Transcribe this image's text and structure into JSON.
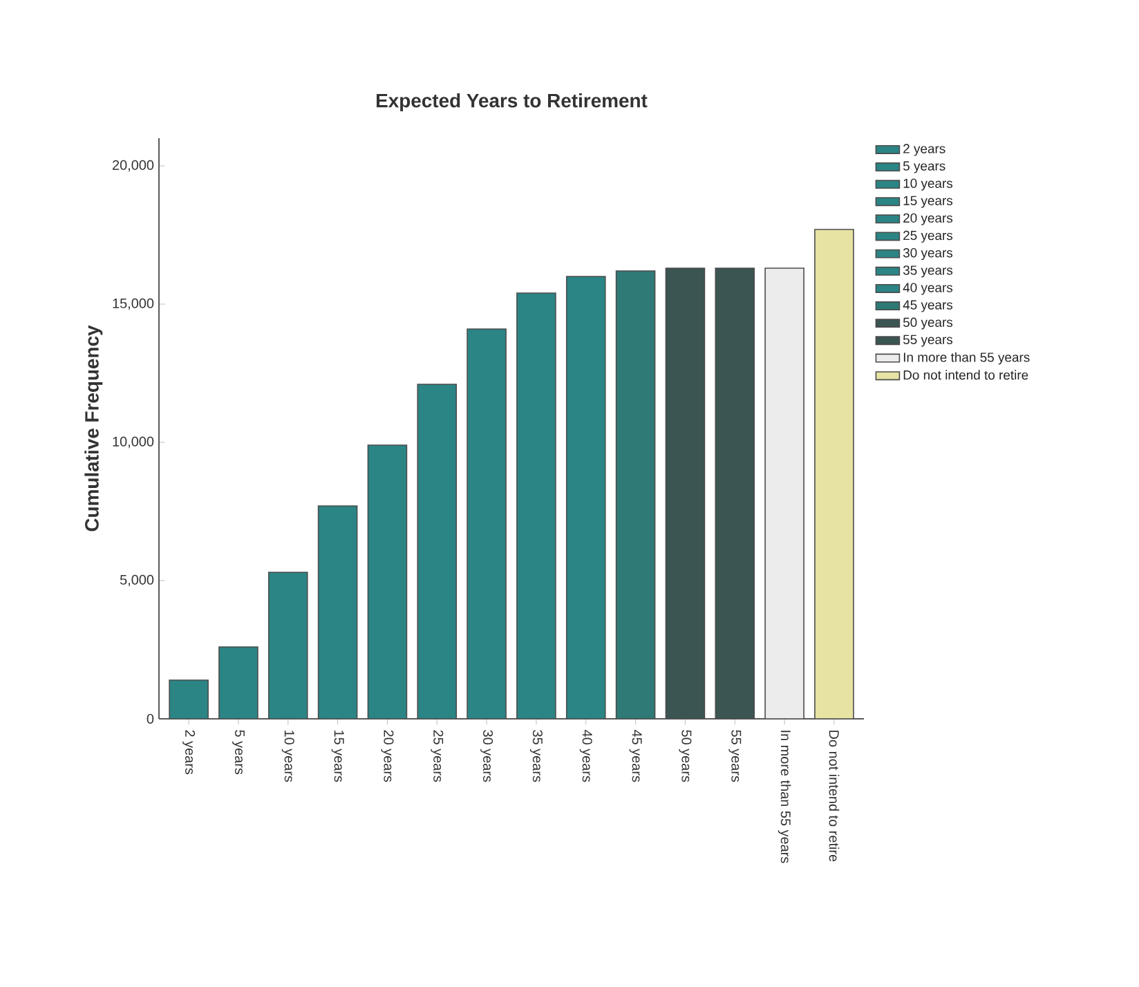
{
  "chart_data": {
    "type": "bar",
    "title": "Expected Years to Retirement",
    "ylabel": "Cumulative Frequency",
    "categories": [
      "2 years",
      "5 years",
      "10 years",
      "15 years",
      "20 years",
      "25 years",
      "30 years",
      "35 years",
      "40 years",
      "45 years",
      "50 years",
      "55 years",
      "In more than 55 years",
      "Do not intend to retire"
    ],
    "series": [
      {
        "name": "2 years",
        "color": "#2b8585",
        "values": [
          1400,
          null,
          null,
          null,
          null,
          null,
          null,
          null,
          null,
          null,
          null,
          null,
          null,
          null
        ]
      },
      {
        "name": "5 years",
        "color": "#2b8585",
        "values": [
          null,
          2600,
          null,
          null,
          null,
          null,
          null,
          null,
          null,
          null,
          null,
          null,
          null,
          null
        ]
      },
      {
        "name": "10 years",
        "color": "#2b8585",
        "values": [
          null,
          null,
          5300,
          null,
          null,
          null,
          null,
          null,
          null,
          null,
          null,
          null,
          null,
          null
        ]
      },
      {
        "name": "15 years",
        "color": "#2b8585",
        "values": [
          null,
          null,
          null,
          7700,
          null,
          null,
          null,
          null,
          null,
          null,
          null,
          null,
          null,
          null
        ]
      },
      {
        "name": "20 years",
        "color": "#2b8585",
        "values": [
          null,
          null,
          null,
          null,
          9900,
          null,
          null,
          null,
          null,
          null,
          null,
          null,
          null,
          null
        ]
      },
      {
        "name": "25 years",
        "color": "#2b8585",
        "values": [
          null,
          null,
          null,
          null,
          null,
          12100,
          null,
          null,
          null,
          null,
          null,
          null,
          null,
          null
        ]
      },
      {
        "name": "30 years",
        "color": "#2b8585",
        "values": [
          null,
          null,
          null,
          null,
          null,
          null,
          14100,
          null,
          null,
          null,
          null,
          null,
          null,
          null
        ]
      },
      {
        "name": "35 years",
        "color": "#2b8585",
        "values": [
          null,
          null,
          null,
          null,
          null,
          null,
          null,
          15400,
          null,
          null,
          null,
          null,
          null,
          null
        ]
      },
      {
        "name": "40 years",
        "color": "#2b8585",
        "values": [
          null,
          null,
          null,
          null,
          null,
          null,
          null,
          null,
          16000,
          null,
          null,
          null,
          null,
          null
        ]
      },
      {
        "name": "45 years",
        "color": "#2f7a76",
        "values": [
          null,
          null,
          null,
          null,
          null,
          null,
          null,
          null,
          null,
          16200,
          null,
          null,
          null,
          null
        ]
      },
      {
        "name": "50 years",
        "color": "#3b5553",
        "values": [
          null,
          null,
          null,
          null,
          null,
          null,
          null,
          null,
          null,
          null,
          16300,
          null,
          null,
          null
        ]
      },
      {
        "name": "55 years",
        "color": "#3b5553",
        "values": [
          null,
          null,
          null,
          null,
          null,
          null,
          null,
          null,
          null,
          null,
          null,
          16300,
          null,
          null
        ]
      },
      {
        "name": "In more than 55 years",
        "color": "#ececec",
        "values": [
          null,
          null,
          null,
          null,
          null,
          null,
          null,
          null,
          null,
          null,
          null,
          null,
          16300,
          null
        ]
      },
      {
        "name": "Do not intend to retire",
        "color": "#e6e3a3",
        "values": [
          null,
          null,
          null,
          null,
          null,
          null,
          null,
          null,
          null,
          null,
          null,
          null,
          null,
          17700
        ]
      }
    ],
    "ylim": [
      0,
      21000
    ],
    "yticks": [
      0,
      {
        "value": 5000,
        "label": "5,000"
      },
      {
        "value": 10000,
        "label": "10,000"
      },
      {
        "value": 15000,
        "label": "15,000"
      },
      {
        "value": 20000,
        "label": "20,000"
      }
    ],
    "grid": false,
    "legend": "right"
  }
}
